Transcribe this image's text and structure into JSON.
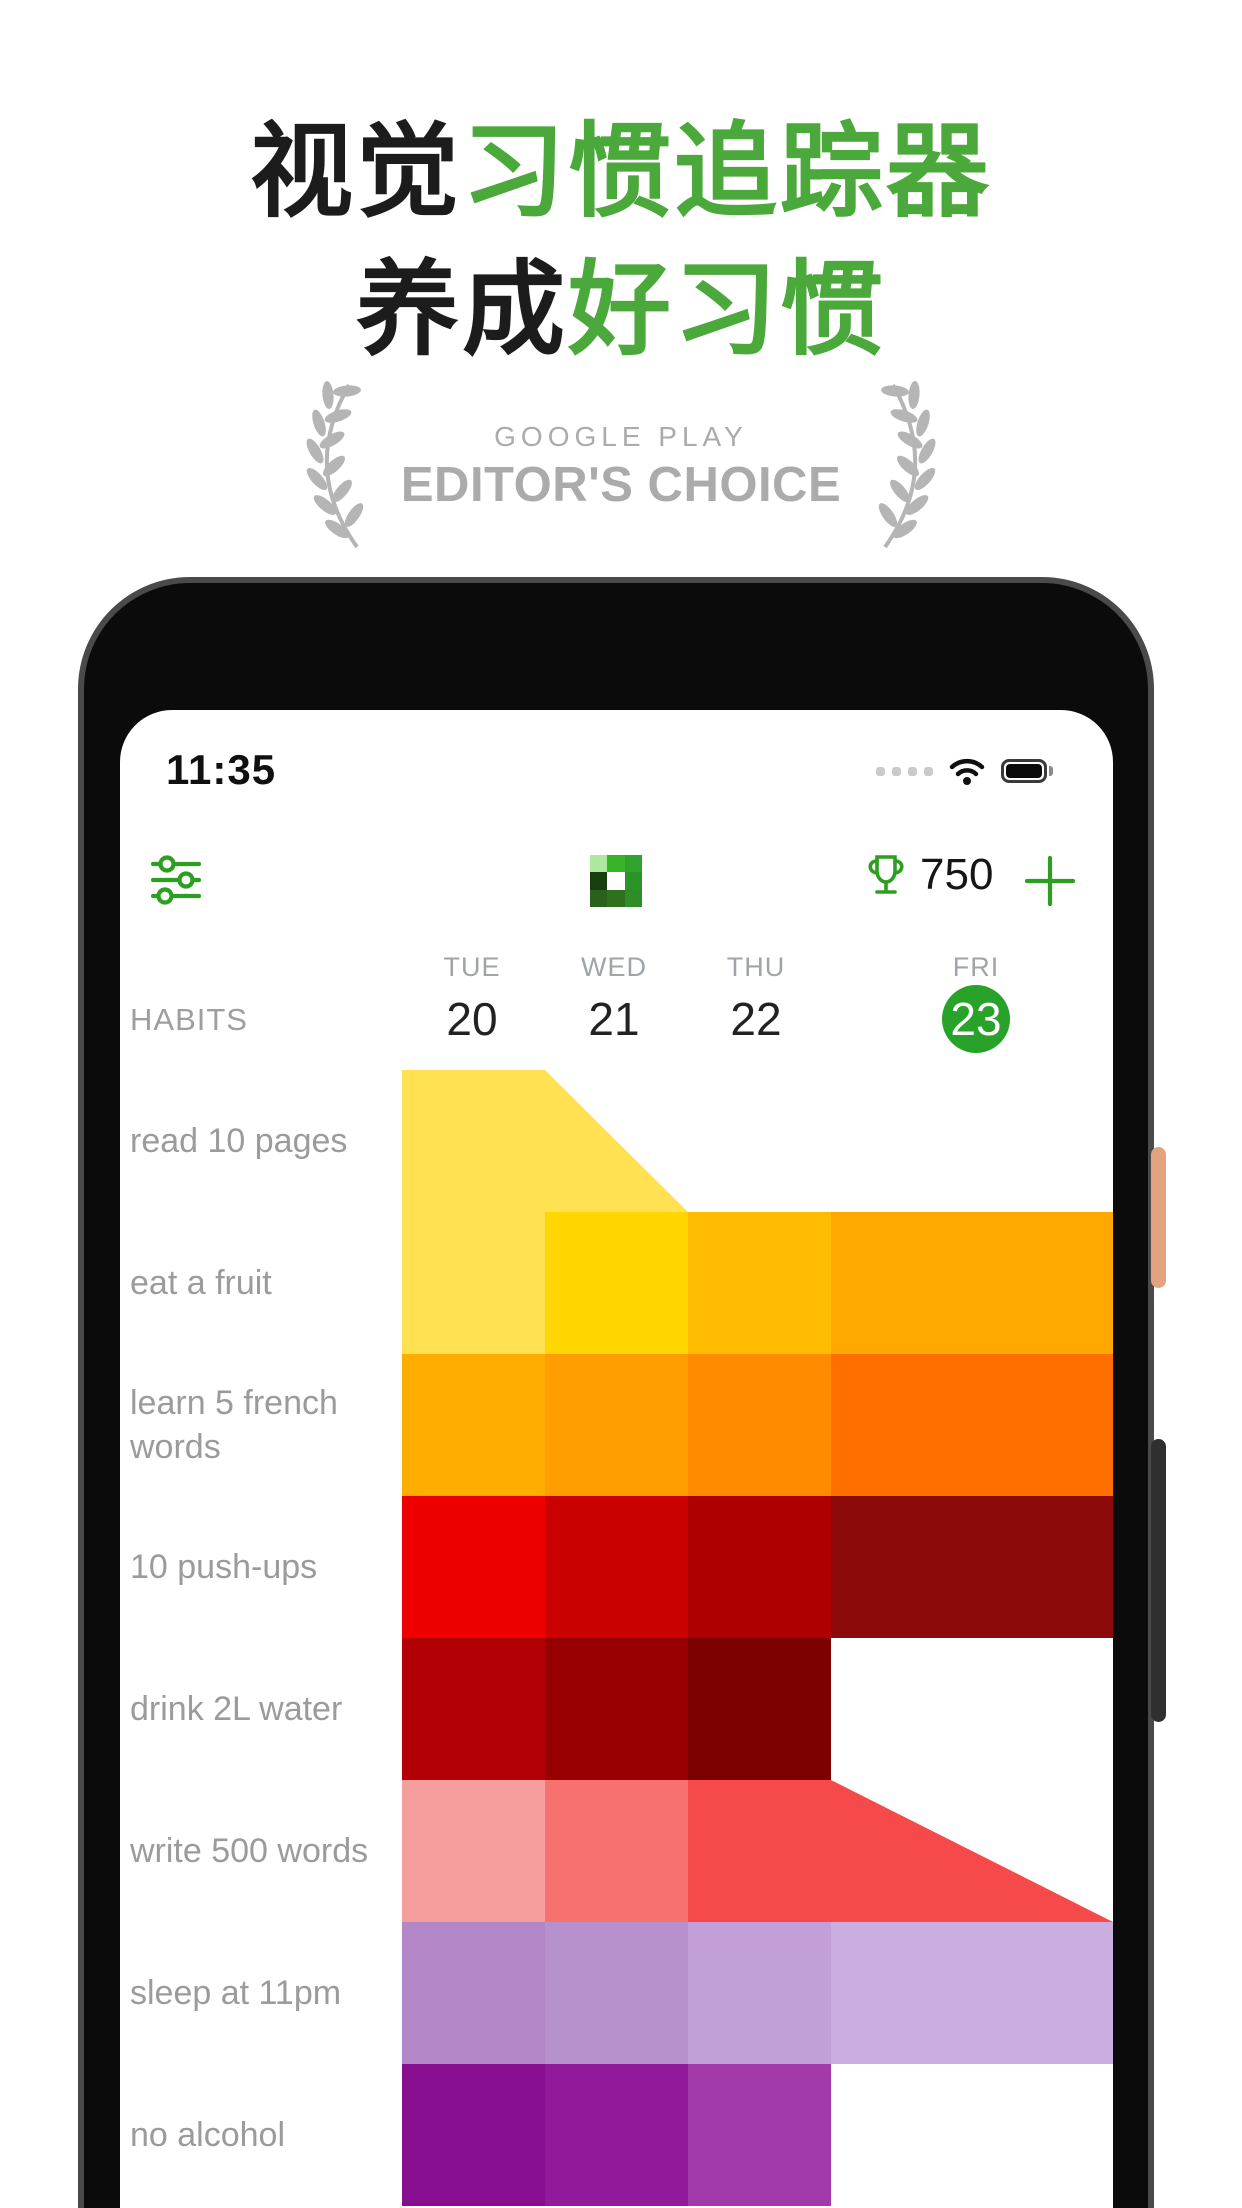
{
  "hero": {
    "title_lines": [
      {
        "segments": [
          {
            "text": "视觉",
            "color": "#1C1C1C"
          },
          {
            "text": "习惯追踪器",
            "color": "#4BA83A"
          }
        ]
      },
      {
        "segments": [
          {
            "text": "养成",
            "color": "#1C1C1C"
          },
          {
            "text": "好习惯",
            "color": "#4BA83A"
          }
        ]
      }
    ]
  },
  "badge": {
    "eyebrow": "GOOGLE PLAY",
    "title": "EDITOR'S CHOICE",
    "color": "#ABABAB"
  },
  "phone": {
    "status_bar": {
      "time": "11:35"
    },
    "app_bar": {
      "points": "750",
      "accent_green": "#2E9E20",
      "logo_pixels": [
        "#ACE8A0",
        "#38B428",
        "#2FA32C",
        "#183D0E",
        "#FFFFFF",
        "#2B9428",
        "#27611B",
        "#2E701E",
        "#2F8D26"
      ]
    },
    "week_header": {
      "habits_label": "HABITS",
      "active_color": "#28A228",
      "days": [
        {
          "label": "TUE",
          "date": "20",
          "active": false
        },
        {
          "label": "WED",
          "date": "21",
          "active": false
        },
        {
          "label": "THU",
          "date": "22",
          "active": false
        },
        {
          "label": "FRI",
          "date": "23",
          "active": true
        }
      ]
    },
    "grid": {
      "rows": [
        {
          "habit": "read 10 pages",
          "cells": [
            {
              "color": "#FFE152",
              "shape": "rect"
            },
            {
              "color": "#FFE152",
              "shape": "tri"
            },
            null,
            null
          ]
        },
        {
          "habit": "eat a fruit",
          "cells": [
            {
              "color": "#FFE152",
              "shape": "rect"
            },
            {
              "color": "#FFD600",
              "shape": "rect"
            },
            {
              "color": "#FFBC00",
              "shape": "rect"
            },
            {
              "color": "#FFA800",
              "shape": "rect"
            }
          ]
        },
        {
          "habit": "learn 5 french words",
          "cells": [
            {
              "color": "#FFAE00",
              "shape": "rect"
            },
            {
              "color": "#FF9E00",
              "shape": "rect"
            },
            {
              "color": "#FF8C00",
              "shape": "rect"
            },
            {
              "color": "#FF6F00",
              "shape": "rect"
            }
          ]
        },
        {
          "habit": "10 push-ups",
          "cells": [
            {
              "color": "#EE0000",
              "shape": "rect"
            },
            {
              "color": "#CB0000",
              "shape": "rect"
            },
            {
              "color": "#AE0000",
              "shape": "rect"
            },
            {
              "color": "#8D0A0A",
              "shape": "rect"
            }
          ]
        },
        {
          "habit": "drink 2L water",
          "cells": [
            {
              "color": "#B30007",
              "shape": "rect"
            },
            {
              "color": "#960001",
              "shape": "rect"
            },
            {
              "color": "#7C0100",
              "shape": "rect"
            },
            null
          ]
        },
        {
          "habit": "write 500 words",
          "cells": [
            {
              "color": "#F69D9D",
              "shape": "rect"
            },
            {
              "color": "#F7716F",
              "shape": "rect"
            },
            {
              "color": "#F64A4A",
              "shape": "rect"
            },
            {
              "color": "#F64A4A",
              "shape": "tri"
            }
          ]
        },
        {
          "habit": "sleep at 11pm",
          "cells": [
            {
              "color": "#B286C7",
              "shape": "rect"
            },
            {
              "color": "#B691CD",
              "shape": "rect"
            },
            {
              "color": "#C2A0D7",
              "shape": "rect"
            },
            {
              "color": "#CBAEDF",
              "shape": "rect"
            }
          ]
        },
        {
          "habit": "no alcohol",
          "cells": [
            {
              "color": "#880E91",
              "shape": "rect"
            },
            {
              "color": "#901A99",
              "shape": "rect"
            },
            {
              "color": "#A23AAA",
              "shape": "rect"
            },
            null
          ]
        }
      ]
    }
  }
}
